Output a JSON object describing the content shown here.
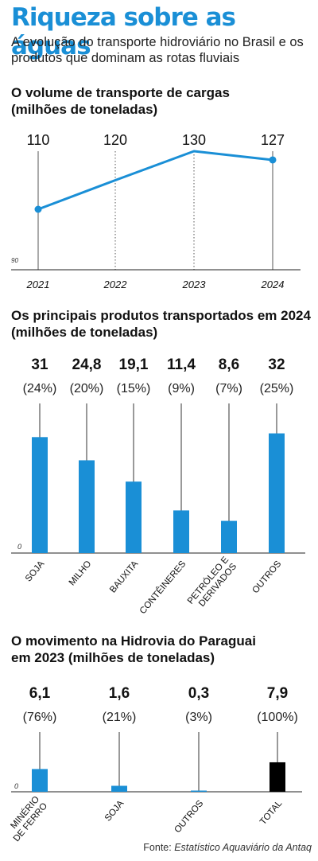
{
  "header": {
    "title": "Riqueza sobre as águas",
    "subtitle": "A evolução do transporte hidroviário no Brasil e os produtos que dominam as rotas fluviais"
  },
  "colors": {
    "accent": "#1a8fd6",
    "total": "#000000",
    "axis": "#222222"
  },
  "chart_data": [
    {
      "type": "line",
      "title": "O volume de transporte de cargas",
      "subtitle": "(milhões de toneladas)",
      "x": [
        "2021",
        "2022",
        "2023",
        "2024"
      ],
      "y": [
        110,
        120,
        130,
        127
      ],
      "top_labels": [
        "110",
        "120",
        "130",
        "127"
      ],
      "y_baseline_label": "90",
      "ylim": [
        90,
        130
      ],
      "marked_points": [
        0,
        3
      ],
      "grid": "vertical dotted"
    },
    {
      "type": "bar",
      "title": "Os principais produtos transportados em 2024",
      "subtitle": "(milhões de toneladas)",
      "categories": [
        "SOJA",
        "MILHO",
        "BAUXITA",
        "CONTÊINERES",
        "PETRÓLEO E DERIVADOS",
        "OUTROS"
      ],
      "category_lines": [
        [
          "SOJA"
        ],
        [
          "MILHO"
        ],
        [
          "BAUXITA"
        ],
        [
          "CONTÊINERES"
        ],
        [
          "PETRÓLEO E",
          "DERIVADOS"
        ],
        [
          "OUTROS"
        ]
      ],
      "values": [
        31,
        24.8,
        19.1,
        11.4,
        8.6,
        32
      ],
      "value_labels": [
        "31",
        "24,8",
        "19,1",
        "11,4",
        "8,6",
        "32"
      ],
      "percent_labels": [
        "(24%)",
        "(20%)",
        "(15%)",
        "(9%)",
        "(7%)",
        "(25%)"
      ],
      "baseline_label": "0",
      "ylim": [
        0,
        40
      ]
    },
    {
      "type": "bar",
      "title": "O movimento na Hidrovia do Paraguai",
      "subtitle": "em 2023 (milhões de toneladas)",
      "categories": [
        "MINÉRIO DE FERRO",
        "SOJA",
        "OUTROS",
        "TOTAL"
      ],
      "category_lines": [
        [
          "MINÉRIO",
          "DE FERRO"
        ],
        [
          "SOJA"
        ],
        [
          "OUTROS"
        ],
        [
          "TOTAL"
        ]
      ],
      "values": [
        6.1,
        1.6,
        0.3,
        7.9
      ],
      "value_labels": [
        "6,1",
        "1,6",
        "0,3",
        "7,9"
      ],
      "percent_labels": [
        "(76%)",
        "(21%)",
        "(3%)",
        "(100%)"
      ],
      "baseline_label": "0",
      "ylim": [
        0,
        16
      ],
      "highlight_last": true
    }
  ],
  "footer": {
    "source_prefix": "Fonte:",
    "source_name": "Estatístico Aquaviário da Antaq"
  }
}
